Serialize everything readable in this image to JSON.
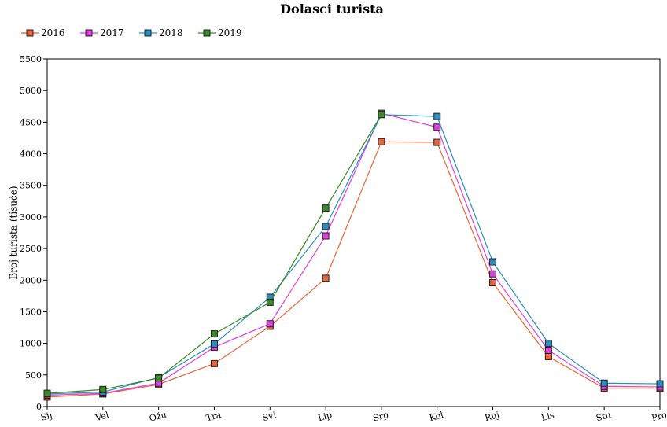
{
  "chart_data": {
    "type": "line",
    "title": "Dolasci turista",
    "xlabel": "",
    "ylabel": "Broj turista (tisuće)",
    "categories": [
      "Sij",
      "Vel",
      "Ožu",
      "Tra",
      "Svi",
      "Lip",
      "Srp",
      "Kol",
      "Ruj",
      "Lis",
      "Stu",
      "Pro"
    ],
    "ylim": [
      0,
      5500
    ],
    "yticks": [
      0,
      500,
      1000,
      1500,
      2000,
      2500,
      3000,
      3500,
      4000,
      4500,
      5000,
      5500
    ],
    "grid": false,
    "legend_position": "top-left",
    "series": [
      {
        "name": "2016",
        "color": "#e8643c",
        "values": [
          150,
          200,
          350,
          680,
          1270,
          2030,
          4190,
          4180,
          1960,
          790,
          290,
          290
        ]
      },
      {
        "name": "2017",
        "color": "#e040e0",
        "values": [
          180,
          210,
          370,
          940,
          1310,
          2700,
          4640,
          4420,
          2100,
          890,
          320,
          310
        ]
      },
      {
        "name": "2018",
        "color": "#2a8fc0",
        "values": [
          200,
          230,
          460,
          990,
          1730,
          2850,
          4620,
          4590,
          2290,
          1000,
          370,
          360
        ]
      },
      {
        "name": "2019",
        "color": "#3a8a2a",
        "values": [
          210,
          270,
          450,
          1150,
          1650,
          3140,
          4620,
          null,
          null,
          null,
          null,
          null
        ]
      }
    ]
  }
}
